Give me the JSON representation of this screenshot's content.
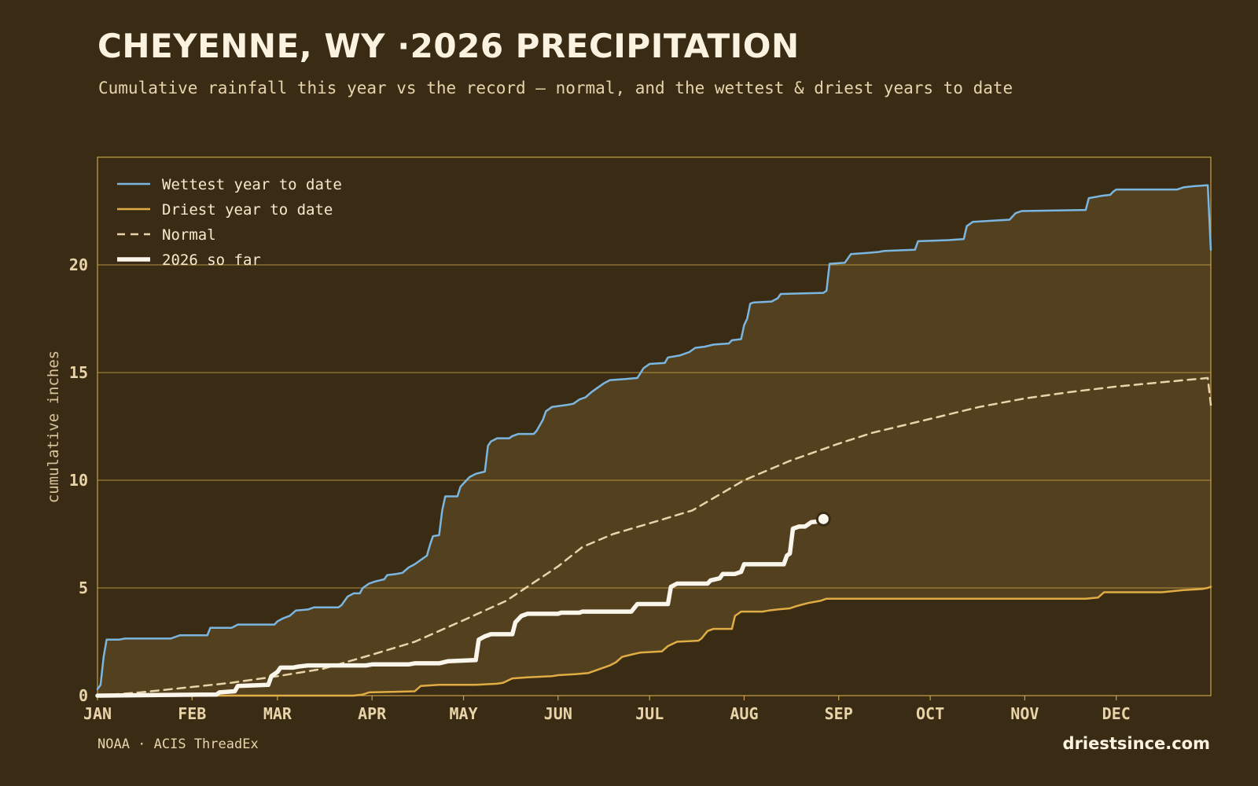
{
  "header": {
    "title": "CHEYENNE, WY ·2026 PRECIPITATION",
    "subtitle": "Cumulative rainfall this year vs the record — normal, and the wettest & driest years to date"
  },
  "footer": {
    "source": "NOAA · ACIS ThreadEx",
    "brand": "driestsince.com"
  },
  "colors": {
    "background": "#3a2c14",
    "band": "#53401e",
    "frame": "#c9a24a",
    "wettest": "#7ab6e0",
    "driest": "#e0ac44",
    "normal": "#e8d4a8",
    "current": "#fbf6ec"
  },
  "chart_data": {
    "type": "line",
    "title": "CHEYENNE, WY ·2026 PRECIPITATION",
    "subtitle": "Cumulative rainfall this year vs the record — normal, and the wettest & driest years to date",
    "xlabel": "",
    "ylabel": "cumulative inches",
    "x_unit": "day of year",
    "xlim": [
      1,
      366
    ],
    "ylim": [
      0,
      25
    ],
    "month_ticks": [
      {
        "label": "JAN",
        "day": 1
      },
      {
        "label": "FEB",
        "day": 32
      },
      {
        "label": "MAR",
        "day": 60
      },
      {
        "label": "APR",
        "day": 91
      },
      {
        "label": "MAY",
        "day": 121
      },
      {
        "label": "JUN",
        "day": 152
      },
      {
        "label": "JUL",
        "day": 182
      },
      {
        "label": "AUG",
        "day": 213
      },
      {
        "label": "SEP",
        "day": 244
      },
      {
        "label": "OCT",
        "day": 274
      },
      {
        "label": "NOV",
        "day": 305
      },
      {
        "label": "DEC",
        "day": 335
      }
    ],
    "y_ticks": [
      0,
      5,
      10,
      15,
      20
    ],
    "grid": "horizontal",
    "legend_position": "top-left",
    "band": "shaded range between driest and wettest year to date",
    "series": [
      {
        "name": "Wettest year to date",
        "style": "solid",
        "color": "#7ab6e0",
        "points": [
          [
            1,
            0.3
          ],
          [
            2,
            0.5
          ],
          [
            3,
            1.8
          ],
          [
            4,
            2.6
          ],
          [
            8,
            2.6
          ],
          [
            10,
            2.65
          ],
          [
            25,
            2.65
          ],
          [
            26,
            2.7
          ],
          [
            28,
            2.8
          ],
          [
            37,
            2.8
          ],
          [
            38,
            3.15
          ],
          [
            45,
            3.15
          ],
          [
            47,
            3.3
          ],
          [
            59,
            3.3
          ],
          [
            60,
            3.45
          ],
          [
            62,
            3.6
          ],
          [
            64,
            3.7
          ],
          [
            66,
            3.95
          ],
          [
            70,
            4.0
          ],
          [
            72,
            4.1
          ],
          [
            80,
            4.1
          ],
          [
            81,
            4.2
          ],
          [
            83,
            4.6
          ],
          [
            85,
            4.75
          ],
          [
            87,
            4.75
          ],
          [
            88,
            5.0
          ],
          [
            90,
            5.2
          ],
          [
            92,
            5.3
          ],
          [
            95,
            5.4
          ],
          [
            96,
            5.6
          ],
          [
            99,
            5.65
          ],
          [
            101,
            5.7
          ],
          [
            103,
            5.95
          ],
          [
            105,
            6.1
          ],
          [
            107,
            6.3
          ],
          [
            109,
            6.5
          ],
          [
            110,
            7.0
          ],
          [
            111,
            7.4
          ],
          [
            113,
            7.45
          ],
          [
            114,
            8.6
          ],
          [
            115,
            9.25
          ],
          [
            119,
            9.25
          ],
          [
            120,
            9.7
          ],
          [
            121,
            9.85
          ],
          [
            122,
            10.0
          ],
          [
            123,
            10.15
          ],
          [
            125,
            10.3
          ],
          [
            128,
            10.4
          ],
          [
            129,
            11.6
          ],
          [
            130,
            11.8
          ],
          [
            132,
            11.95
          ],
          [
            136,
            11.95
          ],
          [
            137,
            12.05
          ],
          [
            139,
            12.15
          ],
          [
            144,
            12.15
          ],
          [
            145,
            12.3
          ],
          [
            147,
            12.8
          ],
          [
            148,
            13.2
          ],
          [
            150,
            13.4
          ],
          [
            155,
            13.5
          ],
          [
            157,
            13.55
          ],
          [
            159,
            13.75
          ],
          [
            161,
            13.85
          ],
          [
            163,
            14.1
          ],
          [
            165,
            14.3
          ],
          [
            167,
            14.5
          ],
          [
            169,
            14.65
          ],
          [
            174,
            14.7
          ],
          [
            178,
            14.75
          ],
          [
            180,
            15.2
          ],
          [
            182,
            15.4
          ],
          [
            187,
            15.45
          ],
          [
            188,
            15.7
          ],
          [
            192,
            15.8
          ],
          [
            195,
            15.95
          ],
          [
            197,
            16.15
          ],
          [
            200,
            16.2
          ],
          [
            203,
            16.3
          ],
          [
            208,
            16.35
          ],
          [
            209,
            16.5
          ],
          [
            212,
            16.55
          ],
          [
            213,
            17.2
          ],
          [
            214,
            17.5
          ],
          [
            215,
            18.2
          ],
          [
            216,
            18.25
          ],
          [
            222,
            18.3
          ],
          [
            224,
            18.45
          ],
          [
            225,
            18.65
          ],
          [
            239,
            18.7
          ],
          [
            240,
            18.8
          ],
          [
            241,
            20.05
          ],
          [
            246,
            20.1
          ],
          [
            248,
            20.5
          ],
          [
            253,
            20.55
          ],
          [
            257,
            20.6
          ],
          [
            259,
            20.65
          ],
          [
            269,
            20.7
          ],
          [
            270,
            21.1
          ],
          [
            280,
            21.15
          ],
          [
            285,
            21.2
          ],
          [
            286,
            21.8
          ],
          [
            288,
            22.0
          ],
          [
            300,
            22.1
          ],
          [
            302,
            22.4
          ],
          [
            304,
            22.5
          ],
          [
            325,
            22.55
          ],
          [
            326,
            23.1
          ],
          [
            330,
            23.2
          ],
          [
            333,
            23.25
          ],
          [
            334,
            23.4
          ],
          [
            335,
            23.5
          ],
          [
            355,
            23.5
          ],
          [
            357,
            23.6
          ],
          [
            360,
            23.65
          ],
          [
            365,
            23.7
          ],
          [
            366,
            20.7
          ]
        ]
      },
      {
        "name": "Driest year to date",
        "style": "solid",
        "color": "#e0ac44",
        "points": [
          [
            1,
            0.0
          ],
          [
            85,
            0.0
          ],
          [
            88,
            0.05
          ],
          [
            90,
            0.15
          ],
          [
            105,
            0.2
          ],
          [
            107,
            0.45
          ],
          [
            113,
            0.5
          ],
          [
            125,
            0.5
          ],
          [
            132,
            0.55
          ],
          [
            134,
            0.6
          ],
          [
            137,
            0.8
          ],
          [
            142,
            0.85
          ],
          [
            150,
            0.9
          ],
          [
            152,
            0.95
          ],
          [
            158,
            1.0
          ],
          [
            162,
            1.05
          ],
          [
            165,
            1.2
          ],
          [
            169,
            1.4
          ],
          [
            171,
            1.55
          ],
          [
            173,
            1.8
          ],
          [
            176,
            1.9
          ],
          [
            179,
            2.0
          ],
          [
            186,
            2.05
          ],
          [
            188,
            2.3
          ],
          [
            191,
            2.5
          ],
          [
            198,
            2.55
          ],
          [
            199,
            2.65
          ],
          [
            201,
            3.0
          ],
          [
            203,
            3.1
          ],
          [
            209,
            3.1
          ],
          [
            210,
            3.7
          ],
          [
            212,
            3.9
          ],
          [
            219,
            3.9
          ],
          [
            221,
            3.95
          ],
          [
            224,
            4.0
          ],
          [
            228,
            4.05
          ],
          [
            230,
            4.15
          ],
          [
            234,
            4.3
          ],
          [
            238,
            4.4
          ],
          [
            240,
            4.5
          ],
          [
            325,
            4.5
          ],
          [
            329,
            4.55
          ],
          [
            331,
            4.8
          ],
          [
            350,
            4.8
          ],
          [
            357,
            4.9
          ],
          [
            363,
            4.95
          ],
          [
            365,
            5.0
          ],
          [
            366,
            5.05
          ]
        ]
      },
      {
        "name": "Normal",
        "style": "dashed",
        "color": "#e8d4a8",
        "points": [
          [
            1,
            0.0
          ],
          [
            15,
            0.15
          ],
          [
            32,
            0.4
          ],
          [
            45,
            0.6
          ],
          [
            60,
            0.9
          ],
          [
            75,
            1.25
          ],
          [
            91,
            1.9
          ],
          [
            105,
            2.5
          ],
          [
            121,
            3.5
          ],
          [
            135,
            4.4
          ],
          [
            152,
            6.0
          ],
          [
            160,
            6.9
          ],
          [
            170,
            7.5
          ],
          [
            182,
            8.0
          ],
          [
            196,
            8.6
          ],
          [
            213,
            10.0
          ],
          [
            228,
            10.9
          ],
          [
            244,
            11.7
          ],
          [
            255,
            12.2
          ],
          [
            274,
            12.85
          ],
          [
            290,
            13.4
          ],
          [
            305,
            13.8
          ],
          [
            320,
            14.1
          ],
          [
            335,
            14.35
          ],
          [
            350,
            14.55
          ],
          [
            365,
            14.75
          ],
          [
            366,
            13.5
          ]
        ]
      },
      {
        "name": "2026 so far",
        "style": "bold",
        "color": "#fbf6ec",
        "points": [
          [
            1,
            0.0
          ],
          [
            40,
            0.05
          ],
          [
            41,
            0.15
          ],
          [
            46,
            0.2
          ],
          [
            47,
            0.45
          ],
          [
            57,
            0.5
          ],
          [
            58,
            0.9
          ],
          [
            60,
            1.1
          ],
          [
            61,
            1.3
          ],
          [
            65,
            1.3
          ],
          [
            67,
            1.35
          ],
          [
            70,
            1.4
          ],
          [
            89,
            1.4
          ],
          [
            91,
            1.45
          ],
          [
            103,
            1.45
          ],
          [
            105,
            1.5
          ],
          [
            109,
            1.5
          ],
          [
            113,
            1.5
          ],
          [
            116,
            1.6
          ],
          [
            125,
            1.65
          ],
          [
            126,
            2.6
          ],
          [
            128,
            2.75
          ],
          [
            130,
            2.85
          ],
          [
            137,
            2.85
          ],
          [
            138,
            3.4
          ],
          [
            140,
            3.7
          ],
          [
            142,
            3.8
          ],
          [
            152,
            3.8
          ],
          [
            153,
            3.85
          ],
          [
            159,
            3.85
          ],
          [
            160,
            3.9
          ],
          [
            176,
            3.9
          ],
          [
            178,
            4.25
          ],
          [
            188,
            4.25
          ],
          [
            189,
            5.05
          ],
          [
            191,
            5.2
          ],
          [
            201,
            5.2
          ],
          [
            202,
            5.35
          ],
          [
            205,
            5.45
          ],
          [
            206,
            5.65
          ],
          [
            210,
            5.65
          ],
          [
            212,
            5.75
          ],
          [
            213,
            6.1
          ],
          [
            226,
            6.1
          ],
          [
            227,
            6.5
          ],
          [
            228,
            6.6
          ],
          [
            229,
            7.75
          ],
          [
            231,
            7.85
          ],
          [
            233,
            7.85
          ],
          [
            235,
            8.05
          ],
          [
            238,
            8.1
          ],
          [
            239,
            8.2
          ]
        ]
      }
    ],
    "current_marker": {
      "day": 239,
      "value": 8.2
    }
  }
}
